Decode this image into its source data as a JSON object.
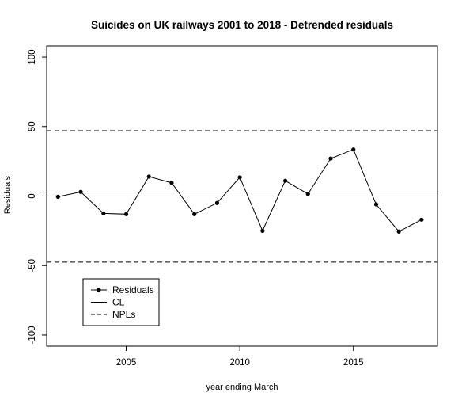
{
  "chart_data": {
    "type": "line",
    "title": "Suicides on UK railways 2001 to 2018 - Detrended residuals",
    "xlabel": "year ending March",
    "ylabel": "Residuals",
    "xlim": [
      2001.5,
      2018.7
    ],
    "ylim": [
      -108,
      108
    ],
    "xticks": [
      2005,
      2010,
      2015
    ],
    "yticks": [
      -100,
      -50,
      0,
      50,
      100
    ],
    "series": [
      {
        "name": "Residuals",
        "style": "solid line with filled points",
        "x": [
          2002,
          2003,
          2004,
          2005,
          2006,
          2007,
          2008,
          2009,
          2010,
          2011,
          2012,
          2013,
          2014,
          2015,
          2016,
          2017,
          2018
        ],
        "y": [
          -0.5,
          3,
          -12.5,
          -13,
          14,
          9.5,
          -13,
          -5,
          13.5,
          -25,
          11,
          1.5,
          27,
          33.5,
          -6,
          -25.5,
          -17
        ]
      },
      {
        "name": "CL",
        "style": "solid",
        "y": 0
      },
      {
        "name": "NPLs",
        "style": "dashed",
        "y": [
          47,
          -47.5
        ]
      }
    ],
    "legend": {
      "position": "bottom-left",
      "entries": [
        {
          "label": "Residuals",
          "style": "line-point"
        },
        {
          "label": "CL",
          "style": "solid"
        },
        {
          "label": "NPLs",
          "style": "dashed"
        }
      ]
    },
    "grid": false,
    "colors": {
      "line": "#000000",
      "background": "#ffffff"
    }
  }
}
